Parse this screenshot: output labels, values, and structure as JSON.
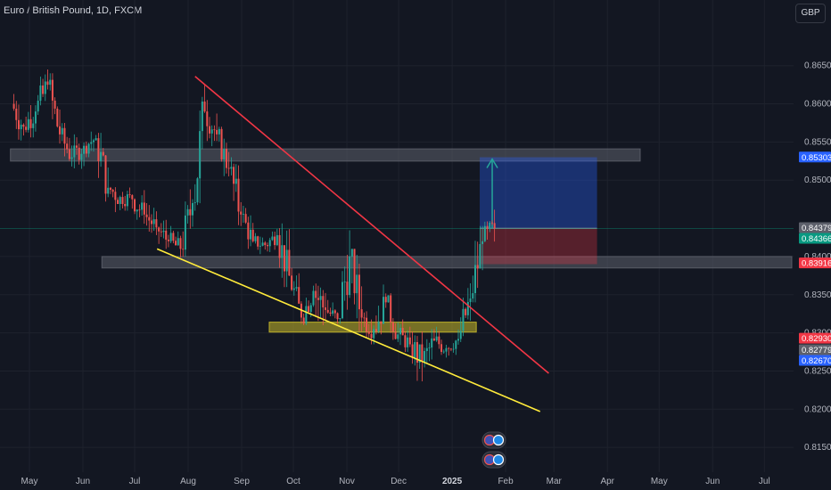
{
  "header": {
    "symbol_title": "Euro / British Pound, 1D, FXCM",
    "currency": "GBP"
  },
  "colors": {
    "background": "#131722",
    "candle_up": "#26a69a",
    "candle_down": "#ef5350",
    "trendline_upper": "#f23645",
    "trendline_lower": "#ffeb3b",
    "zone_gray": "#5d606b",
    "zone_yellow": "#c8b92a",
    "position_target": "#2962ff",
    "position_stop": "#f23645",
    "arrow": "#26a69a"
  },
  "chart_data": {
    "type": "candlestick",
    "symbol": "EURGBP",
    "timeframe": "1D",
    "ylim": [
      0.8135,
      0.868
    ],
    "y_ticks": [
      "0.86500",
      "0.86000",
      "0.85500",
      "0.85000",
      "0.84000",
      "0.83500",
      "0.83000",
      "0.82500",
      "0.82000",
      "0.81500"
    ],
    "x_ticks": [
      "May",
      "Jun",
      "Jul",
      "Aug",
      "Sep",
      "Oct",
      "Nov",
      "Dec",
      "2025",
      "Feb",
      "Mar",
      "Apr",
      "May",
      "Jun",
      "Jul"
    ],
    "x_tick_bold": "2025",
    "price_labels": [
      {
        "text": "0.85303",
        "value": 0.85303,
        "color": "#2962ff"
      },
      {
        "text": "0.84379",
        "value": 0.84379,
        "color": "#5d606b"
      },
      {
        "text": "0.84366",
        "value": 0.84366,
        "color": "#089981"
      },
      {
        "text": "0.83916",
        "value": 0.83916,
        "color": "#f23645"
      },
      {
        "text": "0.82930",
        "value": 0.8293,
        "color": "#f23645"
      },
      {
        "text": "0.82779",
        "value": 0.82779,
        "color": "#5d606b"
      },
      {
        "text": "0.82670",
        "value": 0.8267,
        "color": "#2962ff"
      }
    ],
    "last_price": 0.84366,
    "zones": [
      {
        "name": "resistance",
        "from": 0.8525,
        "to": 0.8541,
        "start": "2024-04-20",
        "end": "2025-04-20",
        "color": "#5d606b"
      },
      {
        "name": "support",
        "from": 0.8385,
        "to": 0.84,
        "start": "2024-06-12",
        "end": "2025-07-25",
        "color": "#5d606b"
      },
      {
        "name": "demand",
        "from": 0.8301,
        "to": 0.8314,
        "start": "2024-09-17",
        "end": "2025-01-15",
        "color": "#c8b92a"
      }
    ],
    "trendlines": [
      {
        "name": "upper",
        "from": [
          "2024-08-05",
          0.8636
        ],
        "to": [
          "2025-02-26",
          0.8247
        ],
        "color": "#f23645"
      },
      {
        "name": "lower",
        "from": [
          "2024-07-14",
          0.841
        ],
        "to": [
          "2025-02-21",
          0.8197
        ],
        "color": "#ffeb3b"
      }
    ],
    "position": {
      "entry": 0.8437,
      "target": 0.853,
      "stop": 0.839,
      "start": "2025-01-17",
      "end": "2025-03-26"
    },
    "candles": [
      [
        "2024-04-22",
        0.86,
        0.8618,
        0.8552,
        0.857
      ],
      [
        "2024-04-29",
        0.857,
        0.8612,
        0.8556,
        0.859
      ],
      [
        "2024-05-06",
        0.859,
        0.8645,
        0.857,
        0.8625
      ],
      [
        "2024-05-13",
        0.8625,
        0.864,
        0.8548,
        0.856
      ],
      [
        "2024-05-20",
        0.856,
        0.8575,
        0.8518,
        0.853
      ],
      [
        "2024-05-27",
        0.853,
        0.856,
        0.8512,
        0.8545
      ],
      [
        "2024-06-03",
        0.8545,
        0.8575,
        0.853,
        0.8555
      ],
      [
        "2024-06-10",
        0.8555,
        0.8562,
        0.8472,
        0.849
      ],
      [
        "2024-06-17",
        0.849,
        0.8508,
        0.845,
        0.8478
      ],
      [
        "2024-06-24",
        0.8478,
        0.85,
        0.846,
        0.8475
      ],
      [
        "2024-07-01",
        0.8475,
        0.8492,
        0.844,
        0.8455
      ],
      [
        "2024-07-08",
        0.8455,
        0.8475,
        0.8428,
        0.8438
      ],
      [
        "2024-07-15",
        0.8438,
        0.8448,
        0.84,
        0.842
      ],
      [
        "2024-07-22",
        0.842,
        0.844,
        0.8392,
        0.841
      ],
      [
        "2024-07-29",
        0.841,
        0.8488,
        0.84,
        0.847
      ],
      [
        "2024-08-05",
        0.847,
        0.8628,
        0.846,
        0.859
      ],
      [
        "2024-08-12",
        0.859,
        0.8605,
        0.854,
        0.856
      ],
      [
        "2024-08-19",
        0.856,
        0.857,
        0.8505,
        0.8515
      ],
      [
        "2024-08-26",
        0.8515,
        0.853,
        0.844,
        0.8455
      ],
      [
        "2024-09-02",
        0.8455,
        0.8468,
        0.841,
        0.842
      ],
      [
        "2024-09-09",
        0.842,
        0.8435,
        0.84,
        0.8415
      ],
      [
        "2024-09-16",
        0.8415,
        0.844,
        0.8402,
        0.8428
      ],
      [
        "2024-09-23",
        0.8428,
        0.8445,
        0.836,
        0.8375
      ],
      [
        "2024-09-30",
        0.8375,
        0.8385,
        0.8312,
        0.832
      ],
      [
        "2024-10-07",
        0.832,
        0.837,
        0.831,
        0.8355
      ],
      [
        "2024-10-14",
        0.8355,
        0.8398,
        0.831,
        0.833
      ],
      [
        "2024-10-21",
        0.833,
        0.8345,
        0.8302,
        0.8318
      ],
      [
        "2024-10-28",
        0.8318,
        0.844,
        0.8312,
        0.84
      ],
      [
        "2024-11-04",
        0.84,
        0.841,
        0.8302,
        0.832
      ],
      [
        "2024-11-11",
        0.832,
        0.834,
        0.8285,
        0.8305
      ],
      [
        "2024-11-18",
        0.8305,
        0.8368,
        0.8298,
        0.834
      ],
      [
        "2024-11-25",
        0.834,
        0.8352,
        0.8288,
        0.8298
      ],
      [
        "2024-12-02",
        0.8298,
        0.832,
        0.8275,
        0.8285
      ],
      [
        "2024-12-09",
        0.8285,
        0.8302,
        0.8228,
        0.8262
      ],
      [
        "2024-12-16",
        0.8262,
        0.8305,
        0.8245,
        0.829
      ],
      [
        "2024-12-23",
        0.829,
        0.8308,
        0.8262,
        0.828
      ],
      [
        "2024-12-30",
        0.828,
        0.8305,
        0.8268,
        0.8292
      ],
      [
        "2025-01-06",
        0.8292,
        0.8365,
        0.8285,
        0.8345
      ],
      [
        "2025-01-13",
        0.8345,
        0.844,
        0.834,
        0.842
      ],
      [
        "2025-01-20",
        0.842,
        0.8462,
        0.84,
        0.8437
      ]
    ]
  },
  "event_badges": [
    {
      "label": "calendar-event-flags-top"
    },
    {
      "label": "calendar-event-flags-bottom"
    }
  ]
}
